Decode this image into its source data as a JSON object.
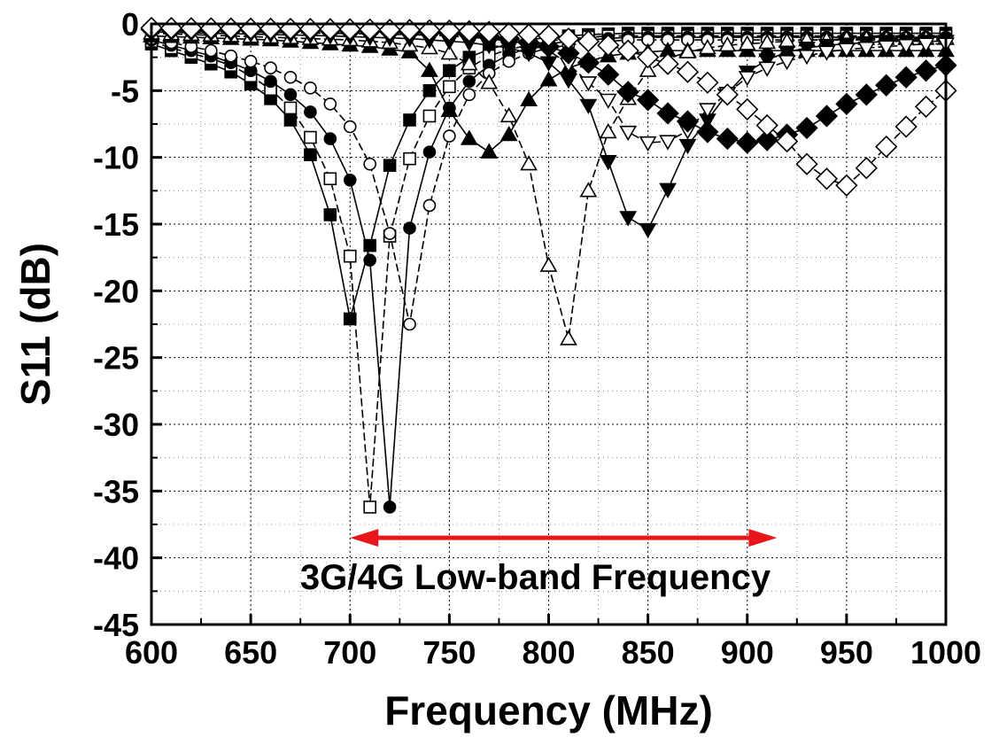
{
  "chart_data": {
    "type": "line",
    "title": "",
    "xlabel": "Frequency (MHz)",
    "ylabel": "S11 (dB)",
    "xlim": [
      600,
      1000
    ],
    "ylim": [
      -45,
      0
    ],
    "xticks": [
      600,
      650,
      700,
      750,
      800,
      850,
      900,
      950,
      1000
    ],
    "yticks": [
      0,
      -5,
      -10,
      -15,
      -20,
      -25,
      -30,
      -35,
      -40,
      -45
    ],
    "grid": true,
    "annotation": {
      "text": "3G/4G Low-band Frequency",
      "range": [
        700,
        915
      ],
      "y": -38.5,
      "color": "#e8161b"
    },
    "x": [
      600,
      610,
      620,
      630,
      640,
      650,
      660,
      670,
      680,
      690,
      700,
      710,
      720,
      730,
      740,
      750,
      760,
      770,
      780,
      790,
      800,
      810,
      820,
      830,
      840,
      850,
      860,
      870,
      880,
      890,
      900,
      910,
      920,
      930,
      940,
      950,
      960,
      970,
      980,
      990,
      1000
    ],
    "series": [
      {
        "marker": "filled-square",
        "values": [
          -1.5,
          -2.0,
          -2.5,
          -3.0,
          -3.6,
          -4.5,
          -5.6,
          -7.2,
          -9.8,
          -14.3,
          -22.1,
          -16.6,
          -10.6,
          -7.2,
          -5.0,
          -3.5,
          -2.5,
          -1.9,
          -1.5,
          -1.2,
          -1.0,
          -0.9,
          -0.8,
          -0.75,
          -0.7,
          -0.7,
          -0.7,
          -0.7,
          -0.7,
          -0.7,
          -0.7,
          -0.7,
          -0.7,
          -0.7,
          -0.7,
          -0.7,
          -0.7,
          -0.7,
          -0.7,
          -0.7,
          -0.7
        ]
      },
      {
        "marker": "open-square",
        "values": [
          -1.3,
          -1.8,
          -2.2,
          -2.6,
          -3.1,
          -3.9,
          -4.9,
          -6.3,
          -8.5,
          -11.6,
          -17.4,
          -36.2,
          -15.9,
          -10.1,
          -6.9,
          -4.7,
          -3.3,
          -2.4,
          -1.9,
          -1.6,
          -1.3,
          -1.1,
          -1.0,
          -0.9,
          -0.9,
          -0.9,
          -0.9,
          -0.9,
          -0.9,
          -0.9,
          -0.9,
          -0.9,
          -0.9,
          -0.9,
          -0.9,
          -0.9,
          -0.9,
          -0.9,
          -0.9,
          -0.9,
          -0.9
        ]
      },
      {
        "marker": "filled-circle",
        "values": [
          -1.2,
          -1.6,
          -2.0,
          -2.4,
          -2.9,
          -3.5,
          -4.3,
          -5.3,
          -6.6,
          -8.6,
          -11.7,
          -17.7,
          -36.2,
          -15.3,
          -9.6,
          -6.3,
          -4.3,
          -3.1,
          -2.3,
          -1.8,
          -1.5,
          -1.3,
          -1.2,
          -1.1,
          -1.0,
          -1.0,
          -1.0,
          -1.0,
          -1.0,
          -1.0,
          -1.0,
          -1.0,
          -1.0,
          -1.0,
          -1.0,
          -1.0,
          -1.0,
          -1.0,
          -1.0,
          -1.0,
          -1.0
        ]
      },
      {
        "marker": "open-circle",
        "values": [
          -1.1,
          -1.4,
          -1.7,
          -2.0,
          -2.4,
          -2.8,
          -3.3,
          -4.0,
          -4.8,
          -6.0,
          -7.7,
          -10.5,
          -15.7,
          -22.5,
          -13.6,
          -8.4,
          -5.3,
          -3.7,
          -2.8,
          -2.2,
          -1.8,
          -1.6,
          -1.4,
          -1.3,
          -1.2,
          -1.2,
          -1.2,
          -1.2,
          -1.2,
          -1.2,
          -1.2,
          -1.2,
          -1.2,
          -1.2,
          -1.2,
          -1.2,
          -1.2,
          -1.2,
          -1.2,
          -1.2,
          -1.2
        ]
      },
      {
        "marker": "filled-triangle-up",
        "values": [
          -0.9,
          -0.95,
          -1.0,
          -1.05,
          -1.1,
          -1.15,
          -1.2,
          -1.3,
          -1.4,
          -1.5,
          -1.6,
          -1.7,
          -1.9,
          -2.1,
          -3.5,
          -6.5,
          -8.6,
          -9.6,
          -8.3,
          -5.7,
          -4.2,
          -3.3,
          -2.8,
          -2.4,
          -2.2,
          -2.1,
          -2.0,
          -2.0,
          -2.0,
          -2.0,
          -2.0,
          -2.0,
          -2.0,
          -2.0,
          -2.0,
          -2.0,
          -2.0,
          -2.0,
          -2.0,
          -2.0,
          -2.0
        ]
      },
      {
        "marker": "open-triangle-up",
        "values": [
          -0.7,
          -0.75,
          -0.8,
          -0.85,
          -0.9,
          -0.95,
          -1.0,
          -1.05,
          -1.1,
          -1.15,
          -1.2,
          -1.3,
          -1.4,
          -1.6,
          -1.8,
          -2.2,
          -3.0,
          -4.4,
          -6.9,
          -10.5,
          -18.1,
          -23.6,
          -12.5,
          -8.1,
          -5.6,
          -3.5,
          -2.6,
          -2.1,
          -1.8,
          -1.6,
          -1.5,
          -1.4,
          -1.3,
          -1.2,
          -1.2,
          -1.1,
          -1.1,
          -1.1,
          -1.1,
          -1.1,
          -1.1
        ]
      },
      {
        "marker": "filled-triangle-down",
        "values": [
          -0.6,
          -0.63,
          -0.66,
          -0.7,
          -0.73,
          -0.76,
          -0.8,
          -0.83,
          -0.86,
          -0.9,
          -0.95,
          -1.0,
          -1.05,
          -1.1,
          -1.2,
          -1.3,
          -1.4,
          -1.6,
          -1.8,
          -2.2,
          -2.9,
          -4.2,
          -6.1,
          -10.3,
          -14.5,
          -15.4,
          -12.4,
          -9.1,
          -7.2,
          -5.2,
          -3.6,
          -2.7,
          -2.1,
          -1.8,
          -1.6,
          -1.5,
          -1.4,
          -1.3,
          -1.3,
          -1.3,
          -1.3
        ]
      },
      {
        "marker": "open-triangle-down",
        "values": [
          -0.5,
          -0.52,
          -0.55,
          -0.57,
          -0.6,
          -0.62,
          -0.64,
          -0.66,
          -0.68,
          -0.7,
          -0.72,
          -0.75,
          -0.78,
          -0.8,
          -0.85,
          -0.9,
          -1.0,
          -1.1,
          -1.3,
          -1.6,
          -2.0,
          -3.0,
          -4.4,
          -5.7,
          -8.1,
          -8.9,
          -8.8,
          -8.0,
          -6.4,
          -5.2,
          -4.0,
          -3.3,
          -2.8,
          -2.4,
          -2.1,
          -1.9,
          -1.8,
          -1.7,
          -1.6,
          -1.5,
          -1.5
        ]
      },
      {
        "marker": "filled-diamond",
        "values": [
          -0.4,
          -0.41,
          -0.42,
          -0.43,
          -0.44,
          -0.45,
          -0.46,
          -0.47,
          -0.48,
          -0.5,
          -0.52,
          -0.54,
          -0.56,
          -0.6,
          -0.65,
          -0.7,
          -0.8,
          -0.95,
          -1.1,
          -1.4,
          -1.7,
          -2.2,
          -2.9,
          -3.8,
          -5.1,
          -5.7,
          -6.7,
          -7.3,
          -8.1,
          -8.6,
          -8.9,
          -8.7,
          -8.3,
          -7.8,
          -6.9,
          -6.0,
          -5.3,
          -4.6,
          -4.0,
          -3.5,
          -3.1
        ]
      },
      {
        "marker": "open-diamond",
        "values": [
          -0.3,
          -0.31,
          -0.32,
          -0.33,
          -0.34,
          -0.35,
          -0.36,
          -0.37,
          -0.38,
          -0.39,
          -0.4,
          -0.42,
          -0.44,
          -0.46,
          -0.48,
          -0.5,
          -0.55,
          -0.6,
          -0.7,
          -0.8,
          -0.9,
          -1.1,
          -1.3,
          -1.6,
          -2.0,
          -2.5,
          -3.0,
          -3.6,
          -4.4,
          -5.3,
          -6.4,
          -7.6,
          -8.8,
          -10.5,
          -11.6,
          -12.1,
          -10.8,
          -9.2,
          -7.7,
          -6.2,
          -5.0
        ]
      }
    ]
  }
}
